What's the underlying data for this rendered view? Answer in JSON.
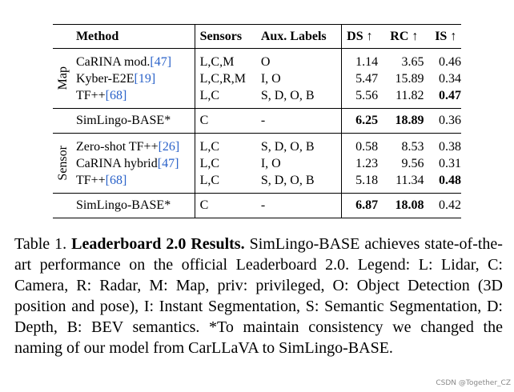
{
  "table": {
    "headers": {
      "method": "Method",
      "sensors": "Sensors",
      "aux": "Aux. Labels",
      "ds": "DS ↑",
      "rc": "RC ↑",
      "is": "IS ↑"
    },
    "groups": [
      {
        "label": "Map",
        "rows": [
          {
            "method": "CaRINA mod.",
            "cite": "[47]",
            "sensors": "L,C,M",
            "aux": "O",
            "ds": "1.14",
            "rc": "3.65",
            "is": "0.46"
          },
          {
            "method": "Kyber-E2E",
            "cite": "[19]",
            "sensors": "L,C,R,M",
            "aux": "I, O",
            "ds": "5.47",
            "rc": "15.89",
            "is": "0.34"
          },
          {
            "method": "TF++",
            "cite": "[68]",
            "sensors": "L,C",
            "aux": "S, D, O, B",
            "ds": "5.56",
            "rc": "11.82",
            "is": "0.47"
          }
        ],
        "base": {
          "method": "SimLingo-BASE*",
          "sensors": "C",
          "aux": "-",
          "ds": "6.25",
          "rc": "18.89",
          "is": "0.36"
        }
      },
      {
        "label": "Sensor",
        "rows": [
          {
            "method": "Zero-shot TF++",
            "cite": "[26]",
            "sensors": "L,C",
            "aux": "S, D, O, B",
            "ds": "0.58",
            "rc": "8.53",
            "is": "0.38"
          },
          {
            "method": "CaRINA hybrid",
            "cite": "[47]",
            "sensors": "L,C",
            "aux": "I, O",
            "ds": "1.23",
            "rc": "9.56",
            "is": "0.31"
          },
          {
            "method": "TF++",
            "cite": "[68]",
            "sensors": "L,C",
            "aux": "S, D, O, B",
            "ds": "5.18",
            "rc": "11.34",
            "is": "0.48"
          }
        ],
        "base": {
          "method": "SimLingo-BASE*",
          "sensors": "C",
          "aux": "-",
          "ds": "6.87",
          "rc": "18.08",
          "is": "0.42"
        }
      }
    ]
  },
  "caption": {
    "prefix": "Table 1. ",
    "title": "Leaderboard 2.0 Results.",
    "body": " SimLingo-BASE achieves state-of-the-art performance on the official Leaderboard 2.0. Legend: L: Lidar, C: Camera, R: Radar, M: Map, priv: privileged, O: Object Detection (3D position and pose), I: Instant Segmentation, S: Semantic Segmentation, D: Depth, B: BEV semantics. *To maintain consistency we changed the naming of our model from CarLLaVA to SimLingo-BASE."
  },
  "watermark": "CSDN @Together_CZ"
}
